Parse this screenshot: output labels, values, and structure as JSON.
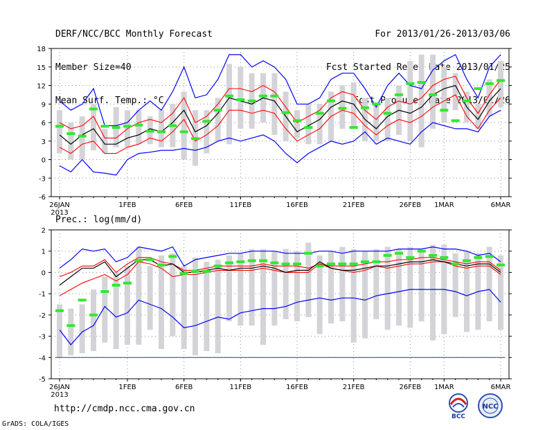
{
  "header": {
    "left": [
      "DERF/NCC/BCC Monthly Forecast",
      "Member Size=40",
      "Mean Surf. Temp.: °C"
    ],
    "right": [
      "For 2013/01/26-2013/03/06",
      "Fcst Started Refer Date 2013/01/25",
      "Fcst Produced Date 2013/01/26"
    ]
  },
  "footer": {
    "url": "http://cmdp.ncc.cma.gov.cn",
    "credit": "GrADS: COLA/IGES"
  },
  "logos": {
    "bcc": "BCC",
    "ncc": "NCC"
  },
  "colors": {
    "envelope": "#0000ff",
    "spread": "#ff0000",
    "mean": "#000000",
    "marker": "#33e633",
    "box": "#d4d4d8"
  },
  "chart_data": [
    {
      "type": "line",
      "title": "Mean Surf. Temp.: °C",
      "days": 40,
      "x_tick_labels": [
        "26JAN",
        "1FEB",
        "6FEB",
        "11FEB",
        "16FEB",
        "21FEB",
        "26FEB",
        "1MAR",
        "6MAR"
      ],
      "x_tick_days": [
        0,
        6,
        11,
        16,
        21,
        26,
        31,
        34,
        39
      ],
      "year_label": "2013",
      "ylim": [
        -6,
        18
      ],
      "yticks": [
        -6,
        -3,
        0,
        3,
        6,
        9,
        12,
        15,
        18
      ],
      "series": [
        {
          "name": "max",
          "values": [
            9.5,
            8,
            9,
            11.5,
            5.5,
            5.5,
            6,
            8,
            9.5,
            8,
            11,
            15,
            10,
            10.5,
            13,
            17,
            17,
            15,
            16,
            15,
            13,
            9,
            9,
            10,
            13,
            14,
            14,
            11.5,
            8.5,
            12,
            14,
            12,
            11.5,
            14.5,
            16,
            17,
            13,
            10,
            15,
            17
          ]
        },
        {
          "name": "upper",
          "values": [
            6,
            5,
            5.5,
            7,
            3.5,
            3.5,
            5,
            6,
            6.5,
            6,
            7.5,
            10,
            6,
            7,
            9,
            11.5,
            11.5,
            11,
            12,
            11,
            8.5,
            6,
            7,
            8,
            10,
            11,
            10.5,
            8,
            6.5,
            8.5,
            9.5,
            9,
            10,
            12,
            13,
            13.5,
            10,
            7.5,
            10.5,
            13
          ]
        },
        {
          "name": "mean",
          "values": [
            4,
            2.5,
            4,
            5,
            2.5,
            2.5,
            3.5,
            4,
            5,
            4.5,
            6,
            8,
            4.5,
            5.5,
            7.5,
            10,
            9.5,
            9,
            10,
            9.5,
            7,
            4.5,
            5.5,
            6.5,
            8.5,
            9.5,
            9,
            6.5,
            5,
            7,
            8,
            7.5,
            8.5,
            10.5,
            11.5,
            12,
            8.5,
            6.5,
            9.5,
            11.5
          ]
        },
        {
          "name": "lower",
          "values": [
            2,
            1,
            2.5,
            3,
            1,
            1,
            2,
            2.5,
            3.5,
            3,
            4.5,
            6.5,
            3,
            4,
            5.5,
            8,
            8,
            7.5,
            8,
            7.5,
            5,
            3,
            4,
            5,
            7,
            8,
            7.5,
            5.5,
            4,
            5.5,
            6.5,
            6,
            7,
            8.5,
            9.5,
            10.5,
            7,
            5,
            8,
            10
          ]
        },
        {
          "name": "min",
          "values": [
            -1,
            -2,
            0,
            -2,
            -2.2,
            -2.5,
            0,
            1,
            1.2,
            1.5,
            1.5,
            1.8,
            1.5,
            2,
            3,
            3.5,
            3,
            3.5,
            4,
            3,
            1,
            -0.5,
            1,
            2,
            3,
            2.5,
            3,
            4.5,
            2.5,
            3.5,
            3,
            2.5,
            4.5,
            6,
            5.5,
            5,
            5,
            4.5,
            7,
            8
          ]
        },
        {
          "name": "marker",
          "values": [
            5.4,
            4.2,
            3.8,
            8.2,
            5.4,
            5.2,
            5.4,
            5.6,
            4.6,
            4.5,
            5.5,
            4.5,
            3.4,
            6.2,
            8,
            10.3,
            9.7,
            9.5,
            10.3,
            10.3,
            7.6,
            6.3,
            5.2,
            7.5,
            9.5,
            8.3,
            5.2,
            8.4,
            9,
            7.5,
            10.5,
            12.3,
            12.5,
            10.5,
            8,
            6.3,
            9.5,
            11.5,
            12.3,
            12.8
          ]
        },
        {
          "name": "box_high",
          "values": [
            8,
            6,
            7,
            9,
            5,
            8.5,
            8,
            8,
            7,
            8,
            9,
            11,
            8,
            8,
            10,
            15.5,
            15,
            14,
            14,
            14,
            11,
            8,
            9,
            9,
            11,
            12,
            12.5,
            10,
            9,
            10,
            12,
            16,
            17,
            17,
            15,
            14,
            11,
            9,
            13,
            16
          ]
        },
        {
          "name": "box_low",
          "values": [
            1,
            0,
            0,
            1.5,
            1,
            2,
            2,
            2.5,
            2.5,
            2,
            2,
            0,
            -1,
            1,
            3,
            2.5,
            5,
            5,
            6,
            4,
            3,
            3.5,
            2.5,
            2.5,
            3,
            5,
            5,
            3,
            3,
            3,
            4,
            3,
            2,
            5,
            6,
            8,
            6,
            5,
            7,
            8.5
          ]
        }
      ]
    },
    {
      "type": "line",
      "title": "Prec.: log(mm/d)",
      "days": 40,
      "x_tick_labels": [
        "26JAN",
        "1FEB",
        "6FEB",
        "11FEB",
        "16FEB",
        "21FEB",
        "26FEB",
        "1MAR",
        "6MAR"
      ],
      "x_tick_days": [
        0,
        6,
        11,
        16,
        21,
        26,
        31,
        34,
        39
      ],
      "year_label": "2013",
      "ylim": [
        -5,
        2
      ],
      "yticks": [
        -5,
        -4,
        -3,
        -2,
        -1,
        0,
        1,
        2
      ],
      "floor_line": -4,
      "series": [
        {
          "name": "max",
          "values": [
            0.2,
            0.6,
            1.1,
            1,
            1.1,
            0.5,
            0.7,
            1.2,
            1.1,
            1,
            1.2,
            0.3,
            0.6,
            0.7,
            0.8,
            0.9,
            0.9,
            1,
            1,
            1,
            0.9,
            0.9,
            0.9,
            1,
            1,
            0.9,
            1,
            1,
            1,
            1,
            1.1,
            1.1,
            1.1,
            1.2,
            1.1,
            1.1,
            1,
            0.8,
            0.9,
            0.5
          ]
        },
        {
          "name": "upper",
          "values": [
            -0.2,
            0,
            0.3,
            0.3,
            0.6,
            0,
            0.4,
            0.7,
            0.7,
            0.5,
            0.4,
            0.1,
            0.1,
            0.2,
            0.3,
            0.3,
            0.3,
            0.3,
            0.4,
            0.3,
            0.3,
            0.3,
            0.2,
            0.4,
            0.3,
            0.3,
            0.3,
            0.4,
            0.5,
            0.5,
            0.6,
            0.6,
            0.7,
            0.7,
            0.6,
            0.5,
            0.4,
            0.5,
            0.5,
            0.1
          ]
        },
        {
          "name": "mean",
          "values": [
            -0.6,
            -0.2,
            0.2,
            0.2,
            0.5,
            -0.2,
            0.2,
            0.6,
            0.6,
            0.3,
            0.4,
            0,
            0,
            0.1,
            0.2,
            0.1,
            0.2,
            0.2,
            0.3,
            0.2,
            0,
            0.1,
            0.1,
            0.5,
            0.2,
            0.1,
            0.1,
            0.2,
            0.3,
            0.3,
            0.4,
            0.5,
            0.5,
            0.6,
            0.5,
            0.4,
            0.3,
            0.4,
            0.4,
            0
          ]
        },
        {
          "name": "lower",
          "values": [
            -1.1,
            -0.8,
            -0.5,
            -0.3,
            -0.1,
            -0.4,
            -0.1,
            0.5,
            0.4,
            0.2,
            -0.2,
            -0.1,
            -0.1,
            0,
            0.1,
            0.1,
            0.1,
            0.1,
            0.2,
            0.1,
            0,
            0,
            0,
            0.4,
            0.2,
            0.1,
            0,
            0.1,
            0.3,
            0.2,
            0.3,
            0.4,
            0.4,
            0.5,
            0.5,
            0.3,
            0.2,
            0.3,
            0.3,
            -0.1
          ]
        },
        {
          "name": "min",
          "values": [
            -2.7,
            -3.4,
            -2.8,
            -2.5,
            -1.6,
            -2.1,
            -1.9,
            -1.3,
            -1.5,
            -1.7,
            -2.1,
            -2.6,
            -2.5,
            -2.3,
            -2.1,
            -2.2,
            -1.9,
            -1.8,
            -1.7,
            -1.7,
            -1.6,
            -1.4,
            -1.3,
            -1.2,
            -1.3,
            -1.2,
            -1.2,
            -1.3,
            -1.1,
            -1,
            -0.9,
            -0.8,
            -0.8,
            -0.8,
            -0.8,
            -0.9,
            -1.1,
            -0.9,
            -0.8,
            -1.4
          ]
        },
        {
          "name": "marker",
          "values": [
            -1.8,
            -2.5,
            -1.3,
            -2,
            -0.9,
            -0.6,
            -0.5,
            0.55,
            0.6,
            0.35,
            0.75,
            -0.05,
            0.05,
            0.05,
            0.3,
            0.45,
            0.5,
            0.55,
            0.55,
            0.45,
            0.4,
            0.4,
            0.9,
            0.3,
            0.4,
            0.4,
            0.4,
            0.5,
            0.5,
            0.8,
            0.9,
            0.7,
            1,
            0.8,
            0.7,
            0.4,
            0.55,
            0.7,
            0.75,
            0.35
          ]
        },
        {
          "name": "box_high",
          "values": [
            -1.5,
            -1.7,
            -1.5,
            -0.8,
            -0.2,
            0,
            0.3,
            1.2,
            0.3,
            0.8,
            0.9,
            0.3,
            0.7,
            0.5,
            0.6,
            0.8,
            0.9,
            1.1,
            1.1,
            1,
            1.1,
            1,
            1.4,
            0.8,
            1,
            1.2,
            1.1,
            1,
            1.1,
            1.2,
            1.1,
            1.2,
            1,
            1.3,
            1.3,
            0.9,
            1,
            0.9,
            1.2,
            0.8
          ]
        },
        {
          "name": "box_low",
          "values": [
            -4,
            -3.9,
            -3.8,
            -3.7,
            -3.3,
            -3.6,
            -3.4,
            -3.4,
            -2.7,
            -3.6,
            -3,
            -3.6,
            -3.9,
            -3.7,
            -3.8,
            -2.3,
            -2.5,
            -2.5,
            -3.4,
            -2.5,
            -2.2,
            -2.3,
            -2.1,
            -2.9,
            -2.4,
            -2.3,
            -3.3,
            -3.1,
            -2.2,
            -2.7,
            -2.5,
            -2.6,
            -2.3,
            -3.2,
            -2.9,
            -2.1,
            -2.8,
            -2.7,
            -2.3,
            -2.7
          ]
        }
      ]
    }
  ]
}
